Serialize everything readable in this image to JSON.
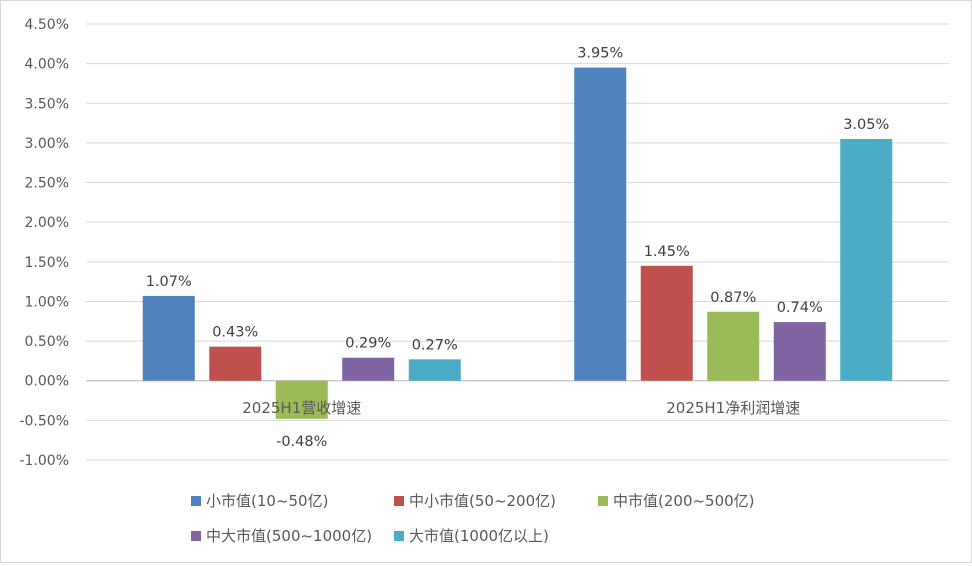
{
  "chart_data": {
    "type": "bar",
    "title": "",
    "xlabel": "",
    "ylabel": "",
    "categories": [
      "2025H1营收增速",
      "2025H1净利润增速"
    ],
    "series": [
      {
        "name": "小市值(10~50亿)",
        "values": [
          1.07,
          3.95
        ],
        "labels": [
          "1.07%",
          "3.95%"
        ],
        "color": "#4F81BD"
      },
      {
        "name": "中小市值(50~200亿)",
        "values": [
          0.43,
          1.45
        ],
        "labels": [
          "0.43%",
          "1.45%"
        ],
        "color": "#C0504D"
      },
      {
        "name": "中市值(200~500亿)",
        "values": [
          -0.48,
          0.87
        ],
        "labels": [
          "-0.48%",
          "0.87%"
        ],
        "color": "#9BBB59"
      },
      {
        "name": "中大市值(500~1000亿)",
        "values": [
          0.29,
          0.74
        ],
        "labels": [
          "0.29%",
          "0.74%"
        ],
        "color": "#8064A2"
      },
      {
        "name": "大市值(1000亿以上)",
        "values": [
          0.27,
          3.05
        ],
        "labels": [
          "0.27%",
          "3.05%"
        ],
        "color": "#4BACC6"
      }
    ],
    "ylim": [
      -1.0,
      4.5
    ],
    "yticks": [
      4.5,
      4.0,
      3.5,
      3.0,
      2.5,
      2.0,
      1.5,
      1.0,
      0.5,
      0.0,
      -0.5,
      -1.0
    ],
    "ytick_labels": [
      "4.50%",
      "4.00%",
      "3.50%",
      "3.00%",
      "2.50%",
      "2.00%",
      "1.50%",
      "1.00%",
      "0.50%",
      "0.00%",
      "-0.50%",
      "-1.00%"
    ],
    "grid": true,
    "legend_position": "bottom"
  }
}
